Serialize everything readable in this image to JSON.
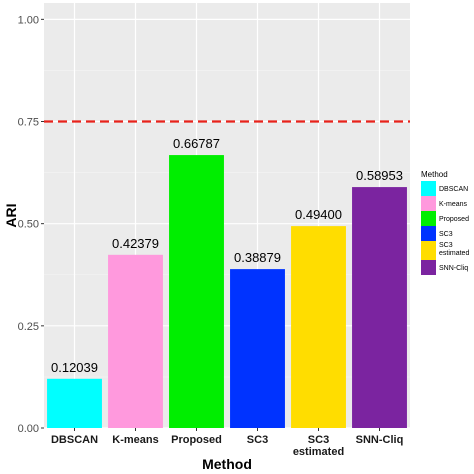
{
  "chart_data": {
    "type": "bar",
    "categories": [
      [
        "DBSCAN"
      ],
      [
        "K-means"
      ],
      [
        "Proposed"
      ],
      [
        "SC3"
      ],
      [
        "SC3",
        "estimated"
      ],
      [
        "SNN-Cliq"
      ]
    ],
    "values": [
      0.12039,
      0.42379,
      0.66787,
      0.38879,
      0.494,
      0.58953
    ],
    "data_labels": [
      "0.12039",
      "0.42379",
      "0.66787",
      "0.38879",
      "0.49400",
      "0.58953"
    ],
    "colors": [
      "#00FFFF",
      "#FF99DD",
      "#00EE00",
      "#0033FF",
      "#FFDD00",
      "#7B24A0"
    ],
    "xlabel": "Method",
    "ylabel": "ARI",
    "ylim": [
      0,
      1.04
    ],
    "yticks": [
      0,
      0.25,
      0.5,
      0.75,
      1.0
    ],
    "ytick_labels": [
      "0.00",
      "0.25",
      "0.50",
      "0.75",
      "1.00"
    ],
    "reference_line": {
      "y": 0.75,
      "color": "#E8221B",
      "style": "dashed"
    },
    "grid": true,
    "panel_background": "#EBEBEB",
    "legend": {
      "title": "Method",
      "placement": "right",
      "entries": [
        [
          "DBSCAN"
        ],
        [
          "K-means"
        ],
        [
          "Proposed"
        ],
        [
          "SC3"
        ],
        [
          "SC3",
          "estimated"
        ],
        [
          "SNN-Cliq"
        ]
      ]
    }
  }
}
